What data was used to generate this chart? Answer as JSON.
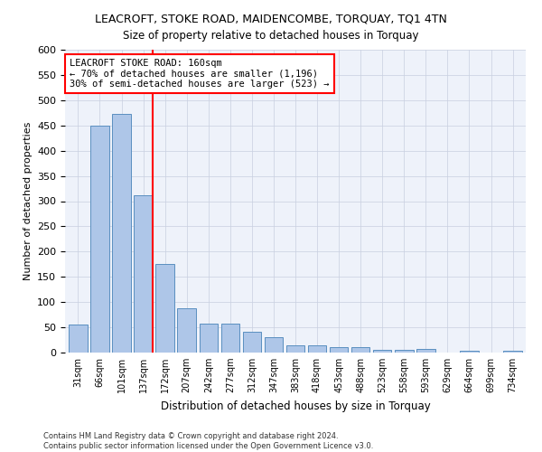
{
  "title": "LEACROFT, STOKE ROAD, MAIDENCOMBE, TORQUAY, TQ1 4TN",
  "subtitle": "Size of property relative to detached houses in Torquay",
  "xlabel": "Distribution of detached houses by size in Torquay",
  "ylabel": "Number of detached properties",
  "categories": [
    "31sqm",
    "66sqm",
    "101sqm",
    "137sqm",
    "172sqm",
    "207sqm",
    "242sqm",
    "277sqm",
    "312sqm",
    "347sqm",
    "383sqm",
    "418sqm",
    "453sqm",
    "488sqm",
    "523sqm",
    "558sqm",
    "593sqm",
    "629sqm",
    "664sqm",
    "699sqm",
    "734sqm"
  ],
  "values": [
    55,
    450,
    472,
    312,
    175,
    88,
    57,
    57,
    41,
    30,
    15,
    15,
    10,
    10,
    6,
    6,
    8,
    0,
    4,
    0,
    4
  ],
  "bar_color": "#aec6e8",
  "bar_edge_color": "#5a8fc0",
  "highlight_line_label": "LEACROFT STOKE ROAD: 160sqm",
  "highlight_line_sub1": "← 70% of detached houses are smaller (1,196)",
  "highlight_line_sub2": "30% of semi-detached houses are larger (523) →",
  "annotation_box_color": "#cc0000",
  "ylim": [
    0,
    600
  ],
  "yticks": [
    0,
    50,
    100,
    150,
    200,
    250,
    300,
    350,
    400,
    450,
    500,
    550,
    600
  ],
  "footer1": "Contains HM Land Registry data © Crown copyright and database right 2024.",
  "footer2": "Contains public sector information licensed under the Open Government Licence v3.0.",
  "bg_color": "#eef2fa",
  "grid_color": "#c8cfe0"
}
